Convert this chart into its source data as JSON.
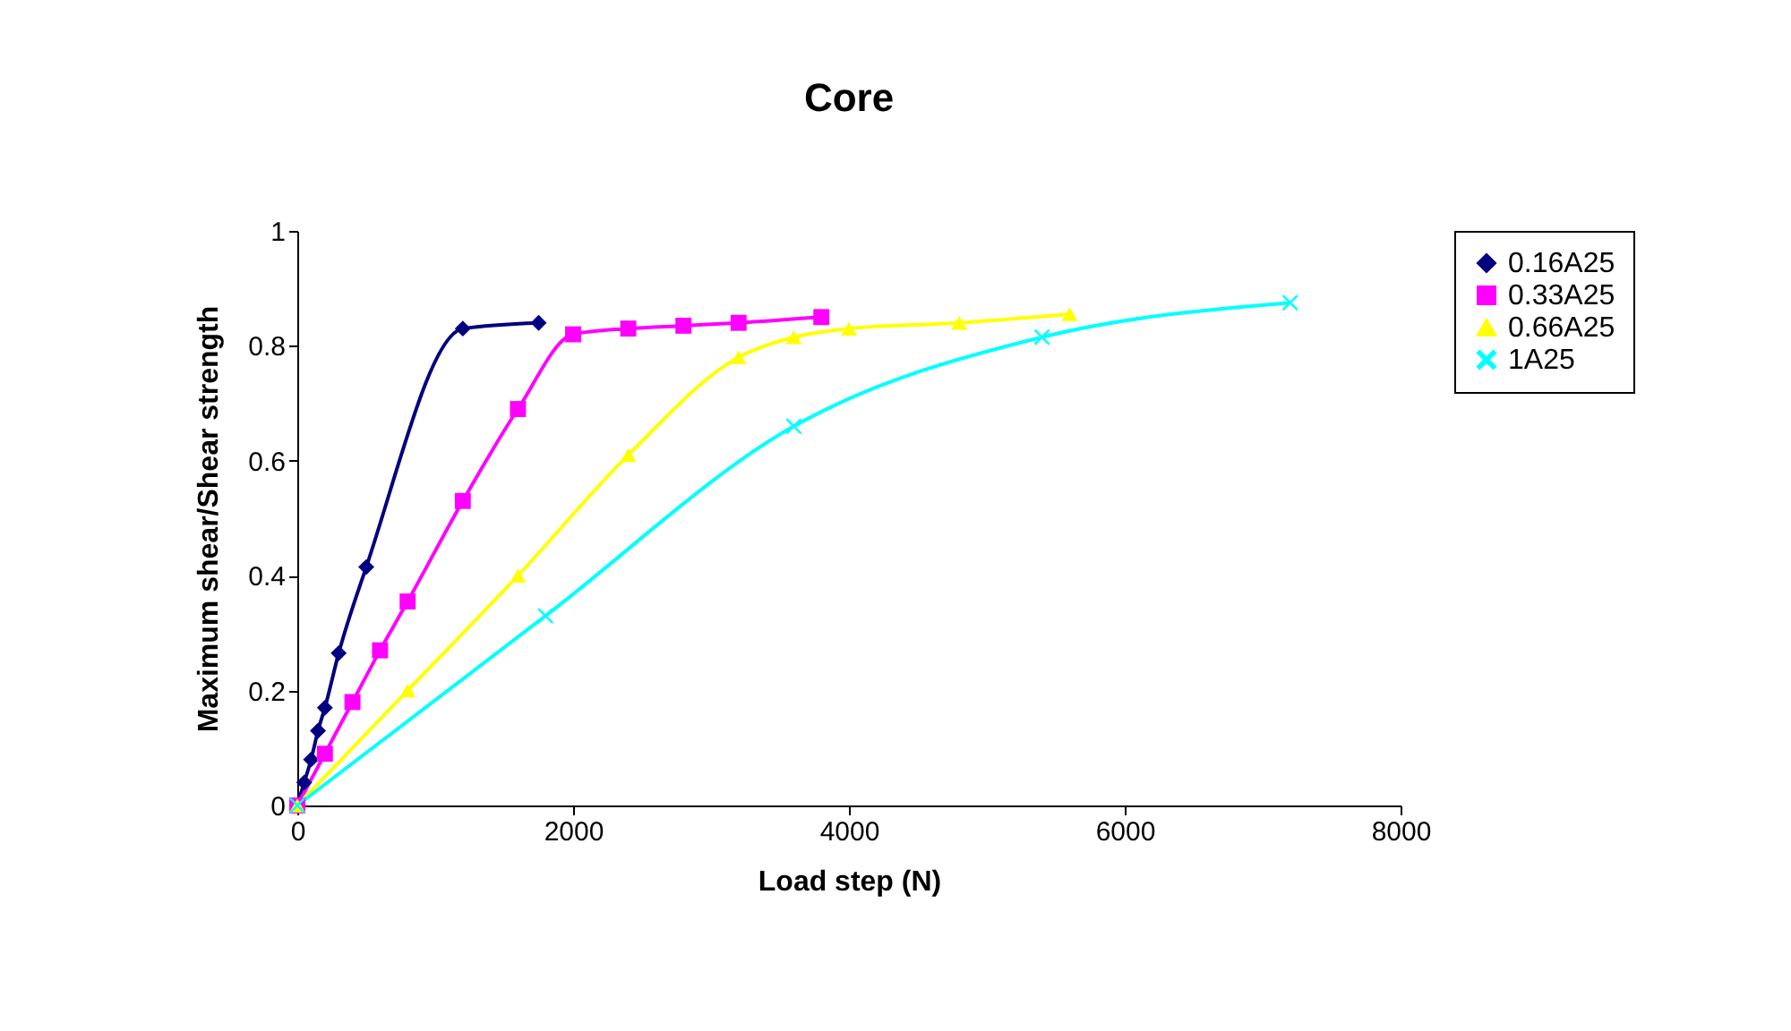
{
  "chart_data": {
    "type": "line",
    "title": "Core",
    "xlabel": "Load step (N)",
    "ylabel": "Maximum shear/Shear strength",
    "xlim": [
      0,
      8000
    ],
    "xticks": [
      0,
      2000,
      4000,
      6000,
      8000
    ],
    "ylim": [
      0,
      1
    ],
    "yticks": [
      0,
      0.2,
      0.4,
      0.6,
      0.8,
      1
    ],
    "grid": false,
    "legend": "right",
    "series": [
      {
        "name": "0.16A25",
        "color": "#000080",
        "marker": "diamond",
        "x": [
          0,
          50,
          100,
          150,
          200,
          300,
          500,
          1200,
          1750
        ],
        "values": [
          0,
          0.04,
          0.08,
          0.13,
          0.17,
          0.265,
          0.415,
          0.83,
          0.84
        ]
      },
      {
        "name": "0.33A25",
        "color": "#ff00ff",
        "marker": "square",
        "x": [
          0,
          200,
          400,
          600,
          800,
          1200,
          1600,
          2000,
          2400,
          2800,
          3200,
          3800
        ],
        "values": [
          0,
          0.09,
          0.18,
          0.27,
          0.355,
          0.53,
          0.69,
          0.82,
          0.83,
          0.835,
          0.84,
          0.85
        ]
      },
      {
        "name": "0.66A25",
        "color": "#ffff00",
        "marker": "triangle",
        "x": [
          0,
          800,
          1600,
          2400,
          3200,
          3600,
          4000,
          4800,
          5600
        ],
        "values": [
          0,
          0.2,
          0.4,
          0.61,
          0.78,
          0.815,
          0.83,
          0.84,
          0.855
        ]
      },
      {
        "name": "1A25",
        "color": "#00ffff",
        "marker": "cross",
        "x": [
          0,
          1800,
          3600,
          5400,
          7200
        ],
        "values": [
          0,
          0.33,
          0.66,
          0.815,
          0.875
        ]
      }
    ]
  }
}
